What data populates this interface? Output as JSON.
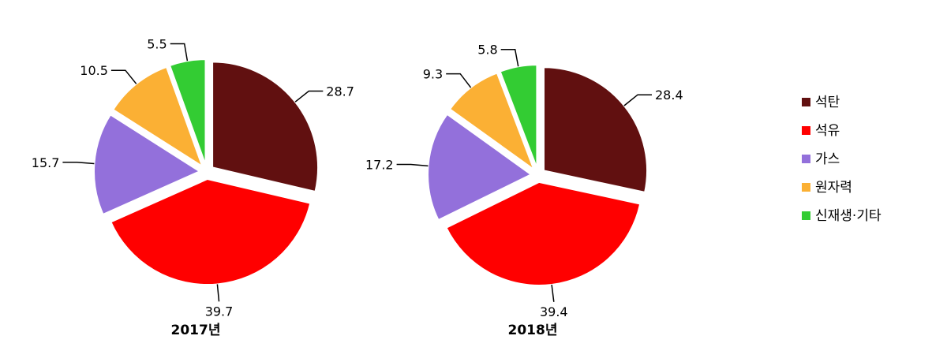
{
  "chart_data": {
    "type": "pie",
    "categories": [
      "석탄",
      "석유",
      "가스",
      "원자력",
      "신재생·기타"
    ],
    "colors": [
      "#611010",
      "#ff0000",
      "#9370db",
      "#fbb034",
      "#33cc33"
    ],
    "pies": [
      {
        "title": "2017년",
        "values": [
          28.7,
          39.7,
          15.7,
          10.5,
          5.5
        ]
      },
      {
        "title": "2018년",
        "values": [
          28.4,
          39.4,
          17.2,
          9.3,
          5.8
        ]
      }
    ],
    "legend_position": "right",
    "exploded": true
  }
}
